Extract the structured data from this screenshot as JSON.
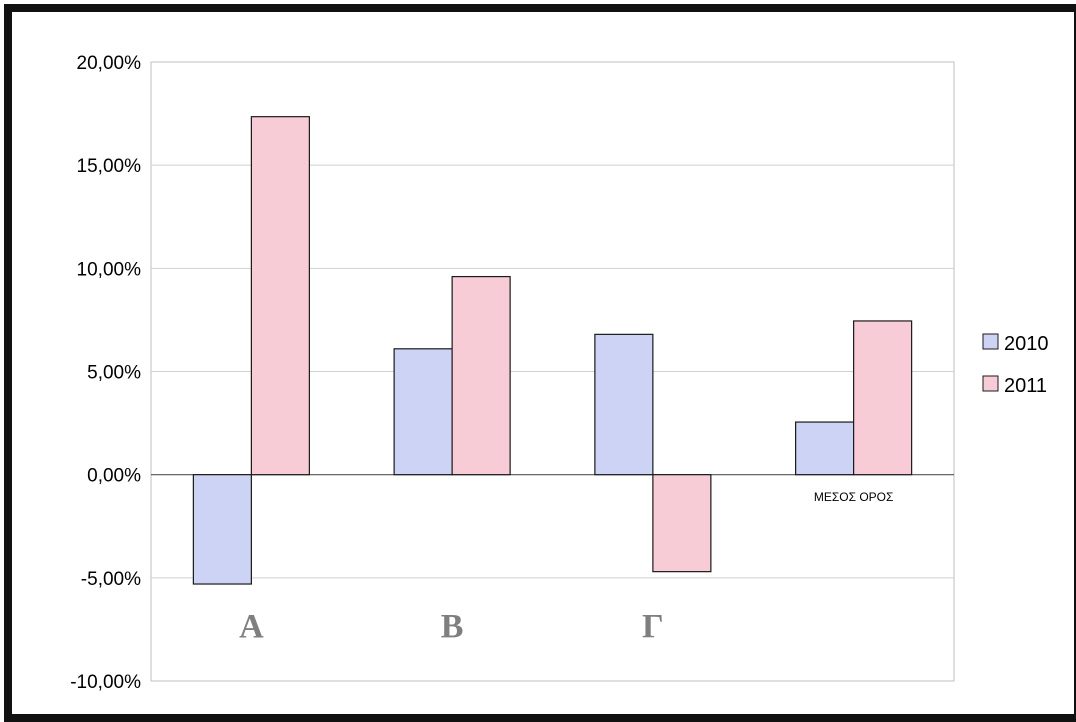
{
  "chart_data": {
    "type": "bar",
    "categories": [
      "Α",
      "Β",
      "Γ",
      "ΜΕΣΟΣ ΟΡΟΣ"
    ],
    "series": [
      {
        "name": "2010",
        "values": [
          -5.3,
          6.1,
          6.8,
          2.55
        ],
        "color": "#cdd3f5"
      },
      {
        "name": "2011",
        "values": [
          17.35,
          9.6,
          -4.7,
          7.45
        ],
        "color": "#f8ccd6"
      }
    ],
    "ylim": [
      -10,
      20
    ],
    "yticks": [
      20,
      15,
      10,
      5,
      0,
      -5,
      -10
    ],
    "ytick_labels": [
      "20,00%",
      "15,00%",
      "10,00%",
      "5,00%",
      "0,00%",
      "-5,00%",
      "-10,00%"
    ],
    "grid": true,
    "legend": "right",
    "title": "",
    "xlabel": "",
    "ylabel": ""
  }
}
